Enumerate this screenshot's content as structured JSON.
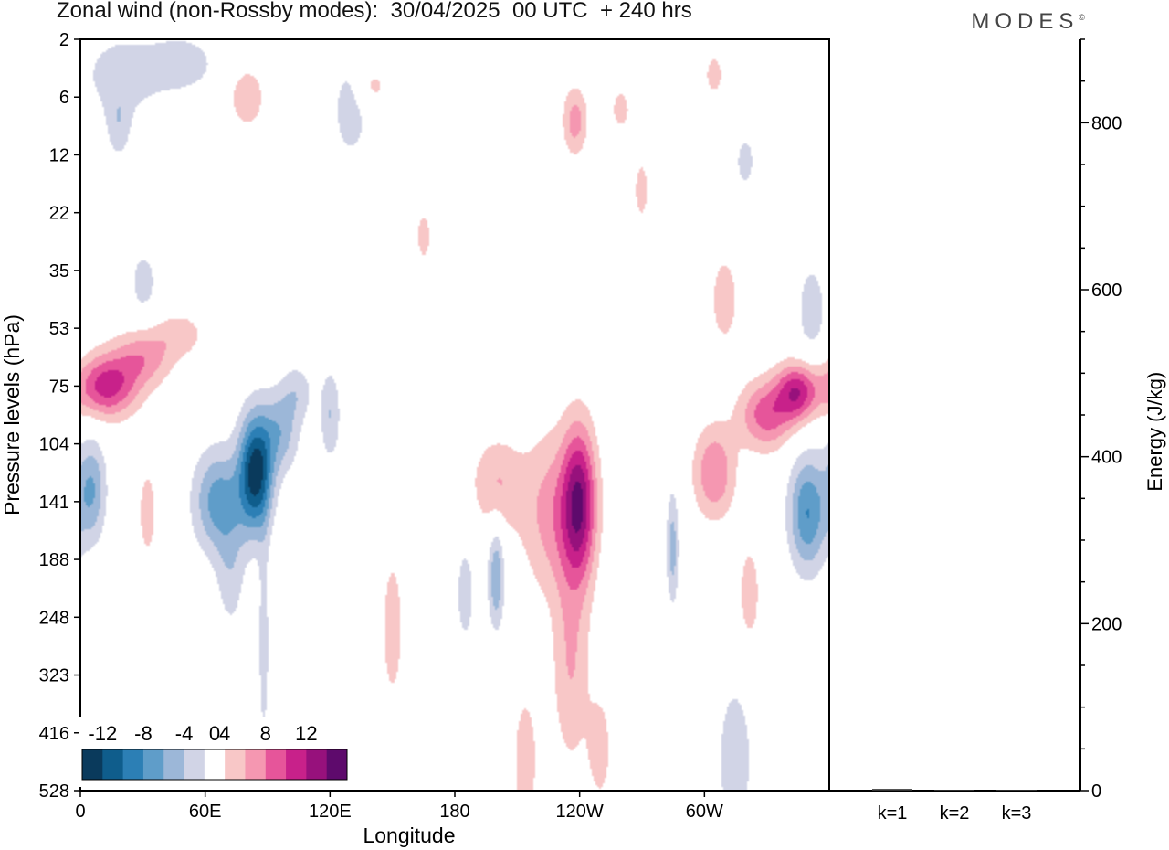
{
  "title": "Zonal wind (non-Rossby modes):  30/04/2025  00 UTC  + 240 hrs",
  "logo": "MODES",
  "logo_mark": "©",
  "chart_data": [
    {
      "type": "heatmap",
      "title": "Zonal wind (non-Rossby modes):  30/04/2025  00 UTC  + 240 hrs",
      "xlabel": "Longitude",
      "ylabel": "Pressure levels (hPa)",
      "x_ticks": [
        "0",
        "60E",
        "120E",
        "180",
        "120W",
        "60W"
      ],
      "x_tick_values": [
        0,
        60,
        120,
        180,
        240,
        300
      ],
      "xlim": [
        0,
        360
      ],
      "y_ticks": [
        "2",
        "6",
        "12",
        "22",
        "35",
        "53",
        "75",
        "104",
        "141",
        "188",
        "248",
        "323",
        "416",
        "528"
      ],
      "y_tick_index": [
        0,
        1,
        2,
        3,
        4,
        5,
        6,
        7,
        8,
        9,
        10,
        11,
        12,
        13
      ],
      "colorbar": {
        "labels": [
          "-12",
          "-8",
          "-4",
          "0",
          "4",
          "8",
          "12"
        ],
        "label_values": [
          -12,
          -8,
          -4,
          0,
          4,
          8,
          12
        ],
        "levels": [
          -14,
          -12,
          -10,
          -8,
          -6,
          -4,
          -2,
          2,
          4,
          6,
          8,
          10,
          12,
          14
        ],
        "colors": [
          "#0a3a5c",
          "#0f5d8c",
          "#2c7fb5",
          "#5f9dc9",
          "#9cb7d8",
          "#d1d4e6",
          "#ffffff",
          "#f8c7c7",
          "#f597b1",
          "#e6559a",
          "#c8218a",
          "#97117c",
          "#5e0a6c"
        ]
      },
      "blobs": [
        {
          "lon": 12,
          "lev": 6.0,
          "value": 9,
          "rx": 15,
          "ry": 0.55
        },
        {
          "lon": 30,
          "lev": 5.5,
          "value": 5,
          "rx": 14,
          "ry": 0.5
        },
        {
          "lon": 48,
          "lev": 5.1,
          "value": 3,
          "rx": 12,
          "ry": 0.4
        },
        {
          "lon": 84,
          "lev": 7.5,
          "value": -13,
          "rx": 8,
          "ry": 1.0
        },
        {
          "lon": 66,
          "lev": 8.0,
          "value": -7,
          "rx": 12,
          "ry": 0.9
        },
        {
          "lon": 96,
          "lev": 6.8,
          "value": -5,
          "rx": 9,
          "ry": 0.7
        },
        {
          "lon": 104,
          "lev": 6.1,
          "value": -3,
          "rx": 8,
          "ry": 0.5
        },
        {
          "lon": 120,
          "lev": 6.5,
          "value": -4,
          "rx": 5,
          "ry": 0.8
        },
        {
          "lon": 5,
          "lev": 7.8,
          "value": -6,
          "rx": 7,
          "ry": 0.9
        },
        {
          "lon": 88,
          "lev": 10.5,
          "value": -3,
          "rx": 3,
          "ry": 2.0
        },
        {
          "lon": 72,
          "lev": 9.3,
          "value": -3,
          "rx": 7,
          "ry": 1.0
        },
        {
          "lon": 240,
          "lev": 8.0,
          "value": 10,
          "rx": 8,
          "ry": 1.3
        },
        {
          "lon": 228,
          "lev": 8.2,
          "value": 5,
          "rx": 16,
          "ry": 1.4
        },
        {
          "lon": 200,
          "lev": 7.7,
          "value": 4,
          "rx": 12,
          "ry": 0.8
        },
        {
          "lon": 236,
          "lev": 10.8,
          "value": 4,
          "rx": 9,
          "ry": 1.8
        },
        {
          "lon": 214,
          "lev": 12.5,
          "value": 3,
          "rx": 7,
          "ry": 1.4
        },
        {
          "lon": 250,
          "lev": 12.3,
          "value": 3,
          "rx": 6,
          "ry": 1.0
        },
        {
          "lon": 150,
          "lev": 10.2,
          "value": 3,
          "rx": 6,
          "ry": 1.5
        },
        {
          "lon": 305,
          "lev": 7.5,
          "value": 6,
          "rx": 10,
          "ry": 0.8
        },
        {
          "lon": 330,
          "lev": 6.5,
          "value": 7,
          "rx": 13,
          "ry": 0.6
        },
        {
          "lon": 345,
          "lev": 6.1,
          "value": 9,
          "rx": 10,
          "ry": 0.5
        },
        {
          "lon": 350,
          "lev": 8.2,
          "value": -8,
          "rx": 9,
          "ry": 1.0
        },
        {
          "lon": 200,
          "lev": 9.3,
          "value": -6,
          "rx": 4,
          "ry": 0.9
        },
        {
          "lon": 285,
          "lev": 8.8,
          "value": -5,
          "rx": 3,
          "ry": 1.0
        },
        {
          "lon": 315,
          "lev": 12.5,
          "value": -4,
          "rx": 8,
          "ry": 1.3
        },
        {
          "lon": 185,
          "lev": 9.6,
          "value": -3,
          "rx": 5,
          "ry": 1.0
        },
        {
          "lon": 32,
          "lev": 8.2,
          "value": 3,
          "rx": 5,
          "ry": 0.9
        },
        {
          "lon": 322,
          "lev": 9.6,
          "value": 3,
          "rx": 6,
          "ry": 1.0
        },
        {
          "lon": 20,
          "lev": 0.6,
          "value": -3,
          "rx": 22,
          "ry": 0.8
        },
        {
          "lon": 50,
          "lev": 0.4,
          "value": -3,
          "rx": 16,
          "ry": 0.5
        },
        {
          "lon": 80,
          "lev": 1.0,
          "value": 4,
          "rx": 8,
          "ry": 0.5
        },
        {
          "lon": 130,
          "lev": 1.2,
          "value": -3,
          "rx": 10,
          "ry": 1.0
        },
        {
          "lon": 140,
          "lev": 0.8,
          "value": 3,
          "rx": 8,
          "ry": 0.4
        },
        {
          "lon": 238,
          "lev": 1.4,
          "value": 5,
          "rx": 6,
          "ry": 0.6
        },
        {
          "lon": 260,
          "lev": 1.2,
          "value": 3,
          "rx": 5,
          "ry": 0.4
        },
        {
          "lon": 305,
          "lev": 0.6,
          "value": 3,
          "rx": 5,
          "ry": 0.4
        },
        {
          "lon": 320,
          "lev": 2.1,
          "value": -3,
          "rx": 5,
          "ry": 0.5
        },
        {
          "lon": 165,
          "lev": 3.4,
          "value": 3,
          "rx": 4,
          "ry": 0.5
        },
        {
          "lon": 30,
          "lev": 4.2,
          "value": -3,
          "rx": 7,
          "ry": 0.6
        },
        {
          "lon": 310,
          "lev": 4.5,
          "value": 4,
          "rx": 6,
          "ry": 0.7
        },
        {
          "lon": 352,
          "lev": 4.7,
          "value": -3,
          "rx": 8,
          "ry": 1.0
        },
        {
          "lon": 270,
          "lev": 2.6,
          "value": 3,
          "rx": 4,
          "ry": 0.6
        },
        {
          "lon": 18,
          "lev": 1.5,
          "value": -3,
          "rx": 6,
          "ry": 0.6
        }
      ]
    },
    {
      "type": "bar",
      "ylabel": "Energy (J/kg)",
      "categories": [
        "k=1",
        "k=2",
        "k=3"
      ],
      "values": [
        2,
        1,
        1
      ],
      "ylim": [
        0,
        900
      ],
      "y_ticks": [
        0,
        200,
        400,
        600,
        800
      ]
    }
  ]
}
